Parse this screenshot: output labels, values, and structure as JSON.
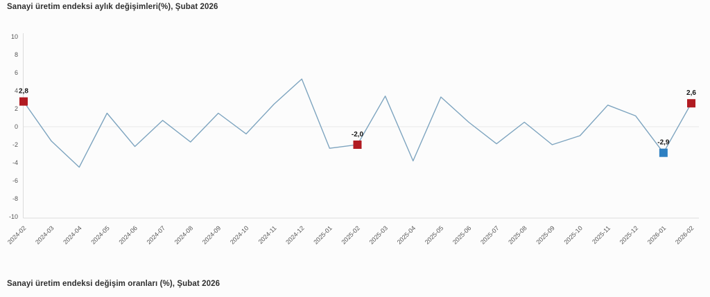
{
  "top_chart": {
    "title": "Sanayi üretim endeksi aylık değişimleri(%), Şubat 2026"
  },
  "bottom_section": {
    "title": "Sanayi üretim endeksi değişim oranları (%), Şubat 2026"
  },
  "chart_data": {
    "type": "line",
    "title": "Sanayi üretim endeksi aylık değişimleri(%), Şubat 2026",
    "categories": [
      "2024-02",
      "2024-03",
      "2024-04",
      "2024-05",
      "2024-06",
      "2024-07",
      "2024-08",
      "2024-09",
      "2024-10",
      "2024-11",
      "2024-12",
      "2025-01",
      "2025-02",
      "2025-03",
      "2025-04",
      "2025-05",
      "2025-06",
      "2025-07",
      "2025-08",
      "2025-09",
      "2025-10",
      "2025-11",
      "2025-12",
      "2026-01",
      "2026-02"
    ],
    "values": [
      2.8,
      -1.6,
      -4.5,
      1.5,
      -2.2,
      0.7,
      -1.7,
      1.5,
      -0.8,
      2.5,
      5.3,
      -2.4,
      -2.0,
      3.4,
      -3.8,
      3.3,
      0.5,
      -1.9,
      0.5,
      -2.0,
      -1.0,
      2.4,
      1.2,
      -2.9,
      2.6
    ],
    "ylim": [
      -10,
      10
    ],
    "ytick_step": 2,
    "yticks": [
      10,
      8,
      6,
      4,
      2,
      0,
      -2,
      -4,
      -6,
      -8,
      -10
    ],
    "xlabel": "",
    "ylabel": "",
    "legend": "none",
    "grid": "zero-line-only",
    "colors": {
      "line": "#7da4bf",
      "marker_red": "#b11b22",
      "marker_blue": "#2e80c2",
      "zero_gridline": "#e9e9e9",
      "axis_line": "#dcdcdc",
      "tick_text": "#555555",
      "label_text": "#141414"
    },
    "marked_points": [
      {
        "category": "2024-02",
        "index": 0,
        "value": 2.8,
        "label": "2,8",
        "color": "#b11b22"
      },
      {
        "category": "2025-02",
        "index": 12,
        "value": -2.0,
        "label": "-2,0",
        "color": "#b11b22"
      },
      {
        "category": "2026-01",
        "index": 23,
        "value": -2.9,
        "label": "-2,9",
        "color": "#2e80c2"
      },
      {
        "category": "2026-02",
        "index": 24,
        "value": 2.6,
        "label": "2,6",
        "color": "#b11b22"
      }
    ]
  }
}
